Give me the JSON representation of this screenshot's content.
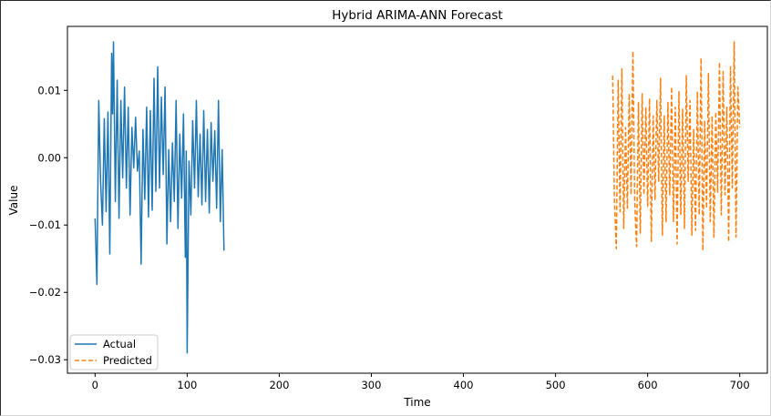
{
  "chart_data": {
    "type": "line",
    "title": "Hybrid ARIMA-ANN Forecast",
    "xlabel": "Time",
    "ylabel": "Value",
    "xlim": [
      -30,
      730
    ],
    "ylim": [
      -0.032,
      0.0195
    ],
    "xticks": [
      0,
      100,
      200,
      300,
      400,
      500,
      600,
      700
    ],
    "xtick_labels": [
      "0",
      "100",
      "200",
      "300",
      "400",
      "500",
      "600",
      "700"
    ],
    "yticks": [
      0.01,
      0.0,
      -0.01,
      -0.02,
      -0.03
    ],
    "ytick_labels": [
      "0.01",
      "0.00",
      "−0.01",
      "−0.02",
      "−0.03"
    ],
    "grid": false,
    "legend_position": "lower-left",
    "series": [
      {
        "name": "Actual",
        "color": "#1f77b4",
        "style": "solid",
        "x": [
          0,
          2,
          4,
          6,
          8,
          10,
          12,
          14,
          16,
          18,
          19,
          20,
          22,
          24,
          26,
          28,
          30,
          32,
          34,
          36,
          38,
          40,
          42,
          44,
          46,
          48,
          50,
          52,
          54,
          56,
          58,
          60,
          62,
          64,
          66,
          68,
          70,
          72,
          74,
          76,
          78,
          80,
          82,
          84,
          86,
          88,
          90,
          92,
          94,
          96,
          98,
          99,
          100,
          102,
          104,
          106,
          108,
          110,
          112,
          114,
          116,
          118,
          120,
          122,
          124,
          126,
          128,
          130,
          132,
          134,
          136,
          138,
          140
        ],
        "values": [
          -0.009,
          -0.0188,
          0.0085,
          -0.0035,
          -0.01,
          0.0058,
          -0.008,
          0.0068,
          -0.0143,
          0.0155,
          0.0065,
          0.0172,
          -0.0065,
          0.0115,
          -0.009,
          0.0085,
          -0.003,
          0.0105,
          -0.0045,
          0.0075,
          -0.0085,
          0.0045,
          -0.0015,
          0.006,
          -0.002,
          0.001,
          -0.0158,
          0.0042,
          -0.0062,
          0.0075,
          -0.0088,
          0.007,
          -0.0078,
          0.0118,
          -0.005,
          0.0135,
          -0.0045,
          0.009,
          -0.0025,
          0.0105,
          -0.0128,
          0.0012,
          -0.0095,
          0.0022,
          -0.0065,
          0.0085,
          -0.0105,
          0.0035,
          -0.006,
          0.0065,
          -0.0148,
          0.001,
          -0.029,
          -0.0005,
          -0.0085,
          0.0055,
          -0.0045,
          0.0085,
          -0.0058,
          0.0035,
          -0.007,
          0.007,
          -0.0065,
          0.0042,
          -0.0082,
          0.0052,
          -0.0035,
          0.004,
          -0.0075,
          0.0085,
          -0.0095,
          0.0012,
          -0.0138
        ]
      },
      {
        "name": "Predicted",
        "color": "#ff7f0e",
        "style": "dashed",
        "x": [
          562,
          564,
          566,
          568,
          570,
          572,
          574,
          576,
          578,
          580,
          582,
          584,
          586,
          588,
          590,
          592,
          594,
          596,
          598,
          600,
          602,
          604,
          606,
          608,
          610,
          612,
          614,
          616,
          618,
          620,
          622,
          624,
          626,
          628,
          630,
          632,
          634,
          636,
          638,
          640,
          642,
          644,
          646,
          648,
          650,
          652,
          654,
          656,
          658,
          660,
          662,
          664,
          666,
          668,
          670,
          672,
          674,
          676,
          678,
          680,
          682,
          684,
          686,
          688,
          690,
          692,
          694,
          696,
          698,
          700
        ],
        "values": [
          0.0122,
          -0.0065,
          -0.0135,
          0.0115,
          -0.008,
          0.0132,
          -0.0105,
          0.0045,
          -0.0075,
          0.0095,
          -0.0055,
          0.0158,
          -0.0065,
          -0.0132,
          0.0082,
          -0.0112,
          0.0095,
          -0.0055,
          0.0075,
          -0.0072,
          0.0088,
          -0.0125,
          0.0062,
          -0.0062,
          0.0085,
          -0.0035,
          0.0118,
          -0.0115,
          0.0062,
          -0.0095,
          0.0082,
          -0.0055,
          0.0105,
          -0.0095,
          0.0075,
          -0.0128,
          0.0098,
          -0.0085,
          0.0072,
          -0.0105,
          0.0122,
          -0.0035,
          0.0085,
          -0.0115,
          0.0042,
          -0.0108,
          0.0098,
          -0.0085,
          0.0148,
          -0.0138,
          0.0055,
          -0.0075,
          0.0125,
          -0.0095,
          0.0062,
          -0.0118,
          0.0068,
          -0.0052,
          0.0142,
          -0.0085,
          0.0128,
          -0.0055,
          0.0075,
          -0.0125,
          0.0135,
          -0.0045,
          0.0172,
          -0.0118,
          0.0105,
          0.0045
        ]
      }
    ]
  }
}
